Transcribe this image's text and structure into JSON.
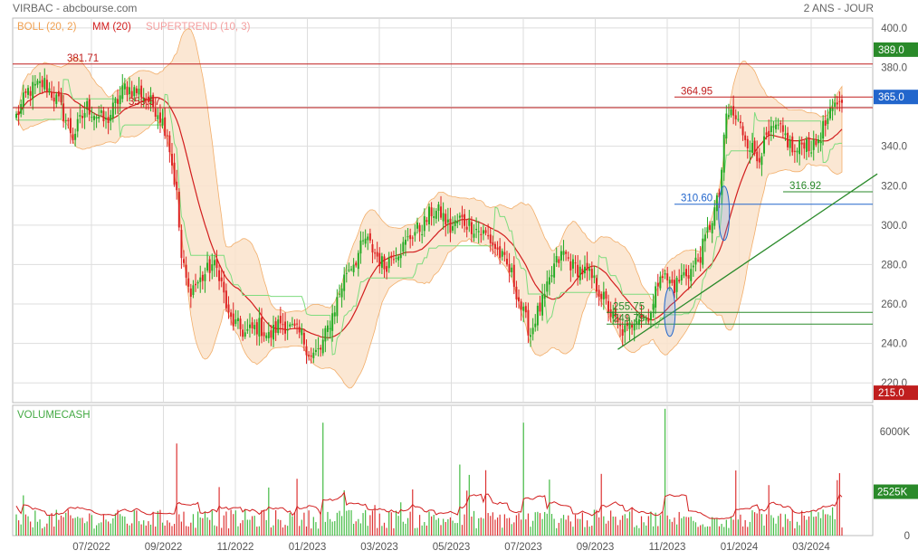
{
  "header": {
    "title": "VIRBAC - abcbourse.com",
    "period": "2 ANS - JOUR"
  },
  "legend": [
    {
      "label": "BOLL (20, 2)",
      "color": "#f0a050"
    },
    {
      "label": "MM (20)",
      "color": "#d21e1e"
    },
    {
      "label": "SUPERTREND (10, 3)",
      "color": "#f4a0a0"
    }
  ],
  "colors": {
    "up": "#22aa22",
    "down": "#dd2222",
    "boll_fill": "#fbe3cc",
    "boll_line": "#f0a050",
    "mm": "#d21e1e",
    "supertrend_up": "#7edc7e",
    "supertrend_down": "#f4a0a0",
    "grid": "#dddddd",
    "volume_up": "#44bb44",
    "volume_down": "#dd3333",
    "volume_line": "#d21e1e",
    "support": "#2a8a2a",
    "resistance": "#c01e1e",
    "info": "#2266cc"
  },
  "chart_data": [
    {
      "type": "candlestick",
      "name": "price",
      "ylim": [
        210,
        405
      ],
      "y_ticks": [
        220,
        240,
        260,
        280,
        300,
        320,
        340,
        360,
        380,
        400
      ],
      "y_tick_labels": [
        "220.0",
        "240.0",
        "260.0",
        "280.0",
        "300.0",
        "320.0",
        "340.0",
        "",
        "380.0",
        "400.0"
      ],
      "x_ticks": [
        "07/2022",
        "09/2022",
        "11/2022",
        "01/2023",
        "03/2023",
        "05/2023",
        "07/2023",
        "09/2023",
        "11/2023",
        "01/2024",
        "03/2024"
      ],
      "grid": true,
      "anchors": [
        [
          0,
          355
        ],
        [
          5,
          368
        ],
        [
          12,
          372
        ],
        [
          18,
          362
        ],
        [
          24,
          345
        ],
        [
          30,
          360
        ],
        [
          38,
          352
        ],
        [
          46,
          370
        ],
        [
          53,
          367
        ],
        [
          60,
          358
        ],
        [
          64,
          347
        ],
        [
          68,
          315
        ],
        [
          70,
          283
        ],
        [
          73,
          267
        ],
        [
          78,
          272
        ],
        [
          83,
          280
        ],
        [
          86,
          276
        ],
        [
          90,
          253
        ],
        [
          97,
          245
        ],
        [
          103,
          249
        ],
        [
          107,
          243
        ],
        [
          112,
          251
        ],
        [
          117,
          247
        ],
        [
          121,
          244
        ],
        [
          125,
          233
        ],
        [
          129,
          237
        ],
        [
          133,
          251
        ],
        [
          136,
          262
        ],
        [
          140,
          277
        ],
        [
          144,
          283
        ],
        [
          148,
          293
        ],
        [
          152,
          286
        ],
        [
          156,
          279
        ],
        [
          160,
          286
        ],
        [
          164,
          289
        ],
        [
          168,
          296
        ],
        [
          172,
          299
        ],
        [
          176,
          307
        ],
        [
          180,
          306
        ],
        [
          184,
          298
        ],
        [
          188,
          303
        ],
        [
          194,
          299
        ],
        [
          200,
          294
        ],
        [
          205,
          285
        ],
        [
          210,
          275
        ],
        [
          214,
          258
        ],
        [
          218,
          245
        ],
        [
          220,
          253
        ],
        [
          224,
          263
        ],
        [
          228,
          279
        ],
        [
          232,
          286
        ],
        [
          236,
          279
        ],
        [
          240,
          277
        ],
        [
          244,
          273
        ],
        [
          248,
          265
        ],
        [
          252,
          255
        ],
        [
          256,
          247
        ],
        [
          259,
          246
        ],
        [
          263,
          255
        ],
        [
          267,
          253
        ],
        [
          270,
          259
        ],
        [
          273,
          278
        ],
        [
          275,
          273
        ],
        [
          279,
          269
        ],
        [
          283,
          275
        ],
        [
          286,
          277
        ],
        [
          290,
          285
        ],
        [
          294,
          300
        ],
        [
          298,
          315
        ],
        [
          301,
          355
        ],
        [
          303,
          357
        ],
        [
          306,
          352
        ],
        [
          310,
          343
        ],
        [
          314,
          334
        ],
        [
          318,
          343
        ],
        [
          322,
          349
        ],
        [
          326,
          345
        ],
        [
          330,
          336
        ],
        [
          334,
          343
        ],
        [
          338,
          339
        ],
        [
          342,
          349
        ],
        [
          346,
          357
        ],
        [
          349,
          365
        ],
        [
          350,
          360
        ]
      ],
      "series_names": [
        "BOLL (20, 2)",
        "MM (20)",
        "SUPERTREND (10, 3)"
      ],
      "horizontal_levels": [
        {
          "value": 381.71,
          "label": "381.71",
          "color": "#c01e1e",
          "full": true
        },
        {
          "value": 359.57,
          "label": "359.57",
          "color": "#c01e1e",
          "full": true
        },
        {
          "value": 364.95,
          "label": "364.95",
          "color": "#c01e1e",
          "full": false
        },
        {
          "value": 316.92,
          "label": "316.92",
          "color": "#2a8a2a",
          "full": false
        },
        {
          "value": 310.6,
          "label": "310.60",
          "color": "#2266cc",
          "full": false
        },
        {
          "value": 255.75,
          "label": "255.75",
          "color": "#2a8a2a",
          "full": false
        },
        {
          "value": 249.79,
          "label": "249.79",
          "color": "#2a8a2a",
          "full": false
        }
      ],
      "trendline": {
        "from": [
          255,
          237
        ],
        "to": [
          365,
          326
        ]
      },
      "ellipses": [
        {
          "label": "around 255.75",
          "center_day": 277,
          "center_value": 256,
          "color": "#2266cc"
        },
        {
          "label": "around 310.60",
          "center_day": 300,
          "center_value": 306,
          "color": "#2266cc"
        }
      ],
      "price_badges": [
        {
          "label": "389.0",
          "value": 389.0,
          "color": "#2a8a2a"
        },
        {
          "label": "365.0",
          "value": 365.0,
          "color": "#2266cc"
        },
        {
          "label": "215.0",
          "value": 215.0,
          "color": "#c01e1e"
        }
      ]
    },
    {
      "type": "bar",
      "name": "VOLUMECASH",
      "title": "VOLUMECASH",
      "ylim": [
        0,
        7500
      ],
      "y_ticks": [
        0,
        6000
      ],
      "y_tick_labels": [
        "0",
        "6000K"
      ],
      "last_value_label": "2525K",
      "last_value": 2525,
      "unit": "K"
    }
  ]
}
